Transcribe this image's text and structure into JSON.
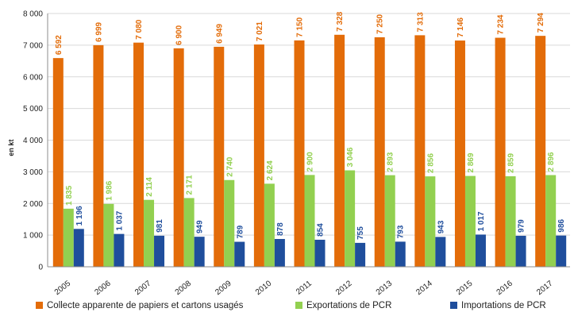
{
  "chart_data": {
    "type": "bar",
    "title": "",
    "xlabel": "",
    "ylabel": "en kt",
    "ylim": [
      0,
      8000
    ],
    "yticks": [
      0,
      1000,
      2000,
      3000,
      4000,
      5000,
      6000,
      7000,
      8000
    ],
    "ytick_labels": [
      "0",
      "1 000",
      "2 000",
      "3 000",
      "4 000",
      "5 000",
      "6 000",
      "7 000",
      "8 000"
    ],
    "grid": true,
    "legend_position": "bottom",
    "categories": [
      "2005",
      "2006",
      "2007",
      "2008",
      "2009",
      "2010",
      "2011",
      "2012",
      "2013",
      "2014",
      "2015",
      "2016",
      "2017"
    ],
    "series": [
      {
        "name": "Collecte apparente de papiers et cartons usagés",
        "color": "#E36C09",
        "values": [
          6592,
          6999,
          7080,
          6900,
          6949,
          7021,
          7150,
          7328,
          7250,
          7313,
          7146,
          7234,
          7294
        ],
        "labels": [
          "6 592",
          "6 999",
          "7 080",
          "6 900",
          "6 949",
          "7 021",
          "7 150",
          "7 328",
          "7 250",
          "7 313",
          "7 146",
          "7 234",
          "7 294"
        ]
      },
      {
        "name": "Exportations de PCR",
        "color": "#92D050",
        "values": [
          1835,
          1986,
          2114,
          2171,
          2740,
          2624,
          2900,
          3046,
          2893,
          2856,
          2869,
          2859,
          2896
        ],
        "labels": [
          "1 835",
          "1 986",
          "2 114",
          "2 171",
          "2 740",
          "2 624",
          "2 900",
          "3 046",
          "2 893",
          "2 856",
          "2 869",
          "2 859",
          "2 896"
        ]
      },
      {
        "name": "Importations de PCR",
        "color": "#1F4E9C",
        "values": [
          1196,
          1037,
          981,
          949,
          789,
          878,
          854,
          755,
          793,
          943,
          1017,
          979,
          986
        ],
        "labels": [
          "1 196",
          "1 037",
          "981",
          "949",
          "789",
          "878",
          "854",
          "755",
          "793",
          "943",
          "1 017",
          "979",
          "986"
        ]
      }
    ]
  }
}
